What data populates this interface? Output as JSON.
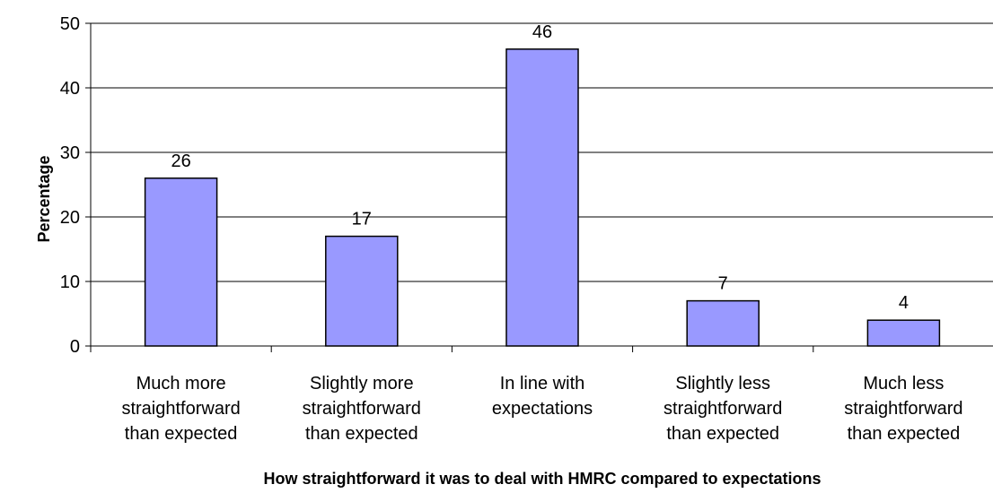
{
  "chart_data": {
    "type": "bar",
    "categories": [
      [
        "Much more",
        "straightforward",
        "than expected"
      ],
      [
        "Slightly more",
        "straightforward",
        "than expected"
      ],
      [
        "In line with",
        "expectations"
      ],
      [
        "Slightly less",
        "straightforward",
        "than expected"
      ],
      [
        "Much less",
        "straightforward",
        "than expected"
      ]
    ],
    "values": [
      26,
      17,
      46,
      7,
      4
    ],
    "data_labels": [
      "26",
      "17",
      "46",
      "7",
      "4"
    ],
    "xlabel": "How straightforward it was to deal with HMRC compared to expectations",
    "ylabel": "Percentage",
    "ylim": [
      0,
      50
    ],
    "yticks": [
      0,
      10,
      20,
      30,
      40,
      50
    ],
    "grid": true,
    "bar_color": "#9999ff",
    "bar_edge_color": "#000000",
    "legend": "none"
  }
}
